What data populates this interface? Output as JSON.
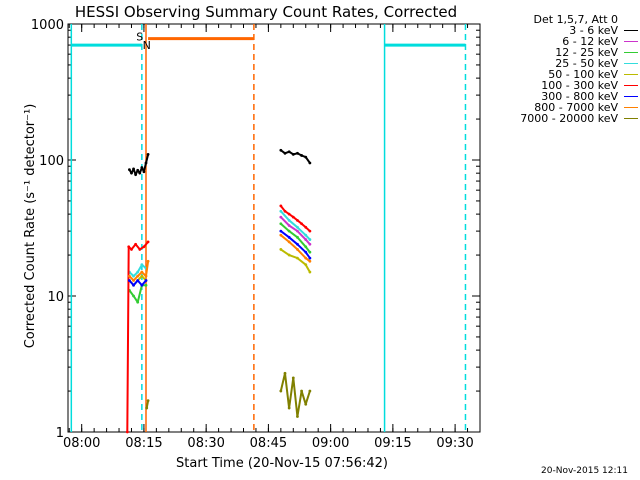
{
  "chart_data": {
    "type": "line",
    "title": "HESSI Observing Summary Count Rates, Corrected",
    "xlabel": "Start Time (20-Nov-15 07:56:42)",
    "ylabel": "Corrected Count Rate (s⁻¹ detector⁻¹)",
    "ylog": true,
    "xlim": [
      "07:56:42",
      "09:36:00"
    ],
    "ylim": [
      1,
      1000
    ],
    "xticks": [
      "08:00",
      "08:15",
      "08:30",
      "08:45",
      "09:00",
      "09:15",
      "09:30"
    ],
    "yticks": [
      "1",
      "10",
      "100",
      "1000"
    ],
    "legend_title": "Det 1,5,7, Att 0",
    "legend_position": "right",
    "series": [
      {
        "name": "3 - 6 keV",
        "color": "#000000",
        "segments": [
          {
            "x": [
              "08:11:30",
              "08:12:00",
              "08:12:30",
              "08:13:00",
              "08:13:30",
              "08:14:00",
              "08:14:30",
              "08:15:00",
              "08:15:30",
              "08:16:00"
            ],
            "y": [
              85,
              80,
              86,
              78,
              84,
              80,
              88,
              82,
              95,
              110
            ]
          },
          {
            "x": [
              "08:48:00",
              "08:49:00",
              "08:50:00",
              "08:51:00",
              "08:52:00",
              "08:53:00",
              "08:54:00",
              "08:55:00"
            ],
            "y": [
              118,
              112,
              115,
              110,
              112,
              108,
              105,
              95
            ]
          }
        ]
      },
      {
        "name": "6 - 12 keV",
        "color": "#cc33cc",
        "segments": [
          {
            "x": [
              "08:48:00",
              "08:50:00",
              "08:52:00",
              "08:54:00",
              "08:55:00"
            ],
            "y": [
              38,
              33,
              30,
              26,
              24
            ]
          }
        ]
      },
      {
        "name": "12 - 25 keV",
        "color": "#33cc33",
        "segments": [
          {
            "x": [
              "08:11:30",
              "08:12:30",
              "08:13:30",
              "08:14:30",
              "08:15:30"
            ],
            "y": [
              11,
              10,
              9,
              12,
              12
            ]
          },
          {
            "x": [
              "08:48:00",
              "08:50:00",
              "08:52:00",
              "08:54:00",
              "08:55:00"
            ],
            "y": [
              34,
              30,
              27,
              23,
              21
            ]
          }
        ]
      },
      {
        "name": "25 - 50 keV",
        "color": "#33dddd",
        "segments": [
          {
            "x": [
              "08:11:30",
              "08:12:30",
              "08:13:30",
              "08:14:30",
              "08:15:30"
            ],
            "y": [
              15,
              14,
              15,
              17,
              16
            ]
          },
          {
            "x": [
              "08:48:00",
              "08:50:00",
              "08:52:00",
              "08:54:00",
              "08:55:00"
            ],
            "y": [
              42,
              36,
              32,
              28,
              26
            ]
          }
        ]
      },
      {
        "name": "50 - 100 keV",
        "color": "#bbbb00",
        "segments": [
          {
            "x": [
              "08:11:30",
              "08:12:30",
              "08:13:30",
              "08:14:30",
              "08:15:30"
            ],
            "y": [
              13,
              12,
              13,
              14,
              13
            ]
          },
          {
            "x": [
              "08:48:00",
              "08:50:00",
              "08:52:00",
              "08:54:00",
              "08:55:00"
            ],
            "y": [
              22,
              20,
              19,
              17,
              15
            ]
          }
        ]
      },
      {
        "name": "100 - 300 keV",
        "color": "#ff0000",
        "segments": [
          {
            "x": [
              "08:11:00",
              "08:11:20",
              "08:12:00",
              "08:13:00",
              "08:14:00",
              "08:15:00",
              "08:16:00"
            ],
            "y": [
              1,
              23,
              22,
              24,
              22,
              23,
              25
            ]
          },
          {
            "x": [
              "08:48:00",
              "08:49:00",
              "08:50:00",
              "08:51:00",
              "08:52:00",
              "08:53:00",
              "08:54:00",
              "08:55:00"
            ],
            "y": [
              46,
              42,
              40,
              38,
              36,
              34,
              32,
              30
            ]
          }
        ]
      },
      {
        "name": "300 - 800 keV",
        "color": "#0000ff",
        "segments": [
          {
            "x": [
              "08:11:30",
              "08:12:30",
              "08:13:30",
              "08:14:30",
              "08:15:30"
            ],
            "y": [
              13,
              12,
              13,
              12,
              13
            ]
          },
          {
            "x": [
              "08:48:00",
              "08:50:00",
              "08:52:00",
              "08:54:00",
              "08:55:00"
            ],
            "y": [
              30,
              27,
              24,
              21,
              19
            ]
          }
        ]
      },
      {
        "name": "800 - 7000 keV",
        "color": "#ff8000",
        "segments": [
          {
            "x": [
              "08:11:30",
              "08:12:30",
              "08:13:30",
              "08:14:30",
              "08:15:30",
              "08:16:00"
            ],
            "y": [
              14,
              13,
              14,
              15,
              14,
              18
            ]
          },
          {
            "x": [
              "08:48:00",
              "08:50:00",
              "08:52:00",
              "08:54:00",
              "08:55:00"
            ],
            "y": [
              28,
              25,
              22,
              19,
              18
            ]
          }
        ]
      },
      {
        "name": "7000 - 20000 keV",
        "color": "#808000",
        "segments": [
          {
            "x": [
              "08:15:40",
              "08:16:00"
            ],
            "y": [
              1.5,
              1.7
            ]
          },
          {
            "x": [
              "08:48:00",
              "08:49:00",
              "08:50:00",
              "08:51:00",
              "08:52:00",
              "08:53:00",
              "08:54:00",
              "08:55:00"
            ],
            "y": [
              2,
              2.7,
              1.5,
              2.5,
              1.3,
              2,
              1.6,
              2
            ]
          }
        ]
      }
    ],
    "state_bars": [
      {
        "color": "#00dddd",
        "x": [
          "07:57:30",
          "08:14:30"
        ],
        "y": 700
      },
      {
        "color": "#ff6600",
        "x": [
          "08:16:00",
          "08:41:30"
        ],
        "y": 780
      },
      {
        "color": "#00dddd",
        "x": [
          "09:13:00",
          "09:32:30"
        ],
        "y": 700
      }
    ],
    "markers": [
      {
        "color": "#00dddd",
        "style": "solid",
        "x": "07:57:30"
      },
      {
        "color": "#00dddd",
        "style": "dashed",
        "x": "08:14:30"
      },
      {
        "color": "#ff6600",
        "style": "solid",
        "x": "08:15:30"
      },
      {
        "color": "#ff6600",
        "style": "dashed",
        "x": "08:41:30"
      },
      {
        "color": "#00dddd",
        "style": "solid",
        "x": "09:13:00"
      },
      {
        "color": "#00dddd",
        "style": "dashed",
        "x": "09:32:30"
      }
    ],
    "annotations": [
      {
        "text": "S",
        "color": "#ff6600",
        "x": "08:14:00",
        "y": 780
      },
      {
        "text": "N",
        "color": "#00dddd",
        "x": "08:15:40",
        "y": 680
      }
    ]
  },
  "footer": {
    "timestamp": "20-Nov-2015 12:11"
  }
}
